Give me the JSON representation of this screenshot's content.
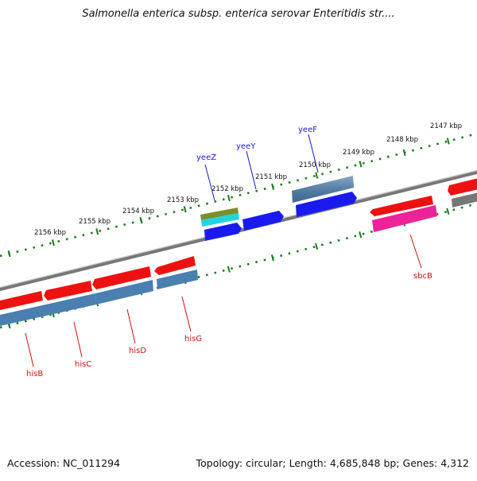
{
  "title": "Salmonella enterica subsp. enterica serovar Enteritidis str....",
  "accession_label": "Accession: NC_011294",
  "topology_label": "Topology: circular; Length: 4,685,848 bp; Genes: 4,312",
  "ruler_ticks": [
    {
      "label": "2156 kbp"
    },
    {
      "label": "2155 kbp"
    },
    {
      "label": "2154 kbp"
    },
    {
      "label": "2153 kbp"
    },
    {
      "label": "2152 kbp"
    },
    {
      "label": "2151 kbp"
    },
    {
      "label": "2150 kbp"
    },
    {
      "label": "2149 kbp"
    },
    {
      "label": "2148 kbp"
    },
    {
      "label": "2147 kbp"
    }
  ],
  "gene_labels_forward": [
    "yeeZ",
    "yeeY",
    "yeeF"
  ],
  "gene_labels_reverse": [
    "hisB",
    "hisC",
    "hisD",
    "hisG",
    "sbcB"
  ],
  "colors": {
    "red": "#ee1111",
    "steelblue": "#4a7fb0",
    "blue": "#1a1aee",
    "olive": "#7a8f2a",
    "cyan": "#22d4e0",
    "magenta": "#ee2299",
    "gray": "#777777",
    "ruler": "#1e7a1e",
    "forward_label": "#1a1acc",
    "reverse_label": "#cc1111"
  }
}
